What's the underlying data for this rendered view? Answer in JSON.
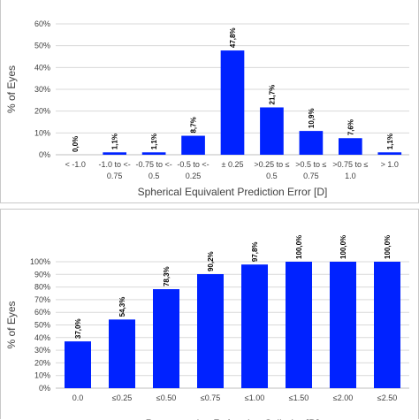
{
  "colors": {
    "bar": "#0022ff",
    "grid": "#d9d9d9",
    "axis": "#bfbfbf",
    "text": "#404040"
  },
  "chart_data": [
    {
      "type": "bar",
      "title": "",
      "xlabel": "Spherical Equivalent Prediction Error [D]",
      "ylabel": "% of Eyes",
      "ylim": [
        0,
        60
      ],
      "yticks": [
        "0%",
        "10%",
        "20%",
        "30%",
        "40%",
        "50%",
        "60%"
      ],
      "grid": true,
      "categories": [
        [
          "< -1.0"
        ],
        [
          "-1.0 to <-",
          "0.75"
        ],
        [
          "-0.75 to <-",
          "0.5"
        ],
        [
          "-0.5 to <-",
          "0.25"
        ],
        [
          "± 0.25"
        ],
        [
          ">0.25 to ≤",
          "0.5"
        ],
        [
          ">0.5 to ≤",
          "0.75"
        ],
        [
          ">0.75 to ≤",
          "1.0"
        ],
        [
          "> 1.0"
        ]
      ],
      "values": [
        0.0,
        1.1,
        1.1,
        8.7,
        47.8,
        21.7,
        10.9,
        7.6,
        1.1
      ],
      "data_labels": [
        "0,0%",
        "1,1%",
        "1,1%",
        "8,7%",
        "47,8%",
        "21,7%",
        "10,9%",
        "7,6%",
        "1,1%"
      ]
    },
    {
      "type": "bar",
      "title": "",
      "xlabel": "Postoperative Refractive Cylinder [D]",
      "ylabel": "% of Eyes",
      "ylim": [
        0,
        100
      ],
      "yticks": [
        "0%",
        "10%",
        "20%",
        "30%",
        "40%",
        "50%",
        "60%",
        "70%",
        "80%",
        "90%",
        "100%"
      ],
      "grid": true,
      "categories": [
        [
          "0.0"
        ],
        [
          "≤0.25"
        ],
        [
          "≤0.50"
        ],
        [
          "≤0.75"
        ],
        [
          "≤1.00"
        ],
        [
          "≤1.50"
        ],
        [
          "≤2.00"
        ],
        [
          "≤2.50"
        ]
      ],
      "values": [
        37.0,
        54.3,
        78.3,
        90.2,
        97.8,
        100.0,
        100.0,
        100.0
      ],
      "data_labels": [
        "37,0%",
        "54,3%",
        "78,3%",
        "90,2%",
        "97,8%",
        "100,0%",
        "100,0%",
        "100,0%"
      ]
    }
  ]
}
